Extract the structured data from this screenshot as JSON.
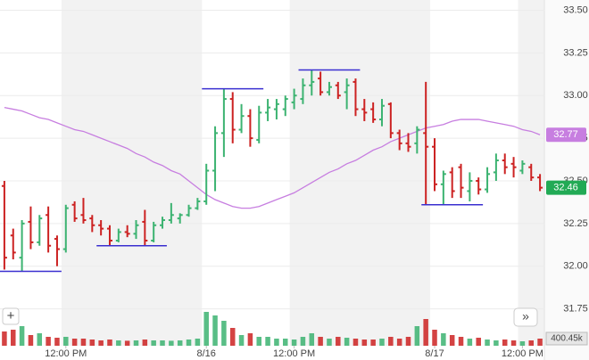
{
  "chart_data": {
    "type": "ohlc",
    "up_color": "#3cb371",
    "down_color": "#cc2222",
    "ma_color": "#c77ee0",
    "level_color": "#3a2fd0",
    "open": [
      32.47,
      32.18,
      32.05,
      32.26,
      32.14,
      32.3,
      32.16,
      32.1,
      32.36,
      32.3,
      32.28,
      32.24,
      32.22,
      32.15,
      32.2,
      32.19,
      32.26,
      32.15,
      32.24,
      32.27,
      32.28,
      32.3,
      32.34,
      32.38,
      32.56,
      32.78,
      32.98,
      32.8,
      32.88,
      32.74,
      32.9,
      32.92,
      32.92,
      32.96,
      32.98,
      33.06,
      33.1,
      33.02,
      33.06,
      33.02,
      33.08,
      32.92,
      32.92,
      32.86,
      32.95,
      32.78,
      32.72,
      32.72,
      32.78,
      32.7,
      32.48,
      32.55,
      32.58,
      32.44,
      32.5,
      32.45,
      32.55,
      32.62,
      32.6,
      32.56,
      32.58,
      32.52
    ],
    "high": [
      32.5,
      32.22,
      32.27,
      32.35,
      32.3,
      32.35,
      32.18,
      32.36,
      32.38,
      32.4,
      32.3,
      32.27,
      32.24,
      32.22,
      32.24,
      32.27,
      32.33,
      32.26,
      32.29,
      32.37,
      32.31,
      32.36,
      32.4,
      32.6,
      32.82,
      33.04,
      33.02,
      32.95,
      32.92,
      32.94,
      32.98,
      32.98,
      33.0,
      33.04,
      33.1,
      33.15,
      33.14,
      33.08,
      33.08,
      33.1,
      33.1,
      32.98,
      32.96,
      32.98,
      32.96,
      32.8,
      32.78,
      32.82,
      33.08,
      32.75,
      32.56,
      32.58,
      32.6,
      32.55,
      32.52,
      32.58,
      32.66,
      32.66,
      32.64,
      32.62,
      32.6,
      32.54
    ],
    "low": [
      31.98,
      32.04,
      31.97,
      32.1,
      32.12,
      32.08,
      32.0,
      32.08,
      32.26,
      32.25,
      32.2,
      32.18,
      32.12,
      32.14,
      32.17,
      32.16,
      32.12,
      32.14,
      32.22,
      32.25,
      32.25,
      32.29,
      32.33,
      32.36,
      32.44,
      32.64,
      32.72,
      32.78,
      32.7,
      32.72,
      32.85,
      32.86,
      32.88,
      32.92,
      32.95,
      33.0,
      33.0,
      33.0,
      32.98,
      32.92,
      32.88,
      32.85,
      32.84,
      32.82,
      32.75,
      32.68,
      32.67,
      32.66,
      32.36,
      32.44,
      32.36,
      32.4,
      32.4,
      32.38,
      32.42,
      32.43,
      32.5,
      32.54,
      32.52,
      32.54,
      32.5,
      32.44
    ],
    "close": [
      32.05,
      32.08,
      32.25,
      32.14,
      32.28,
      32.12,
      32.1,
      32.34,
      32.28,
      32.27,
      32.24,
      32.22,
      32.15,
      32.2,
      32.19,
      32.24,
      32.15,
      32.24,
      32.27,
      32.3,
      32.3,
      32.34,
      32.38,
      32.56,
      32.78,
      32.98,
      32.8,
      32.88,
      32.75,
      32.9,
      32.93,
      32.95,
      32.98,
      33.0,
      33.06,
      33.08,
      33.02,
      33.05,
      33.0,
      33.06,
      32.92,
      32.9,
      32.86,
      32.94,
      32.78,
      32.72,
      32.7,
      32.8,
      32.7,
      32.48,
      32.54,
      32.44,
      32.46,
      32.5,
      32.45,
      32.54,
      32.62,
      32.58,
      32.58,
      32.6,
      32.52,
      32.46
    ],
    "moving_average": [
      32.93,
      32.92,
      32.91,
      32.89,
      32.87,
      32.86,
      32.84,
      32.82,
      32.8,
      32.79,
      32.77,
      32.75,
      32.73,
      32.71,
      32.69,
      32.66,
      32.64,
      32.61,
      32.59,
      32.56,
      32.54,
      32.5,
      32.46,
      32.42,
      32.39,
      32.37,
      32.35,
      32.34,
      32.34,
      32.35,
      32.37,
      32.39,
      32.41,
      32.43,
      32.46,
      32.49,
      32.52,
      32.55,
      32.57,
      32.6,
      32.62,
      32.65,
      32.68,
      32.7,
      32.73,
      32.75,
      32.77,
      32.79,
      32.81,
      32.82,
      32.83,
      32.85,
      32.86,
      32.86,
      32.86,
      32.85,
      32.84,
      32.83,
      32.82,
      32.8,
      32.79,
      32.77
    ],
    "volume": [
      800000,
      900000,
      1100000,
      600000,
      700000,
      500000,
      450000,
      500000,
      400000,
      400000,
      350000,
      300000,
      350000,
      300000,
      280000,
      300000,
      350000,
      300000,
      300000,
      280000,
      300000,
      350000,
      400000,
      1900000,
      1700000,
      1400000,
      1000000,
      600000,
      700000,
      500000,
      500000,
      400000,
      400000,
      350000,
      500000,
      700000,
      500000,
      400000,
      500000,
      450000,
      400000,
      350000,
      350000,
      400000,
      500000,
      400000,
      500000,
      1100000,
      1500000,
      900000,
      700000,
      600000,
      500000,
      400000,
      450000,
      350000,
      300000,
      350000,
      300000,
      250000,
      300000,
      400000
    ],
    "levels": [
      {
        "value": 31.97,
        "start": 0,
        "end": 6
      },
      {
        "value": 32.12,
        "start": 11,
        "end": 18
      },
      {
        "value": 33.04,
        "start": 23,
        "end": 29
      },
      {
        "value": 33.15,
        "start": 34,
        "end": 40
      },
      {
        "value": 32.36,
        "start": 48,
        "end": 54
      }
    ],
    "xticks": [
      {
        "value": 7,
        "label": "12:00 PM"
      },
      {
        "value": 23,
        "label": "8/16"
      },
      {
        "value": 33,
        "label": "12:00 PM"
      },
      {
        "value": 49,
        "label": "8/17"
      },
      {
        "value": 59,
        "label": "12:00 PM"
      }
    ],
    "ylim": [
      31.68,
      33.56
    ],
    "yticks": [
      31.75,
      {
        "value": 32,
        "label": "32.00"
      },
      32.25,
      {
        "value": 32.5,
        "label": "32.50"
      },
      32.75,
      {
        "value": 33,
        "label": "33.00"
      },
      33.25,
      {
        "value": 33.5,
        "label": "33.50"
      }
    ],
    "volume_lim": [
      0,
      2500000
    ],
    "volume_ticks": [
      {
        "value": 400450,
        "label": "400.45k"
      }
    ],
    "ma_last": 32.77,
    "last_price": 32.46
  },
  "controls": {
    "zoom": "+",
    "scroll": "»"
  }
}
